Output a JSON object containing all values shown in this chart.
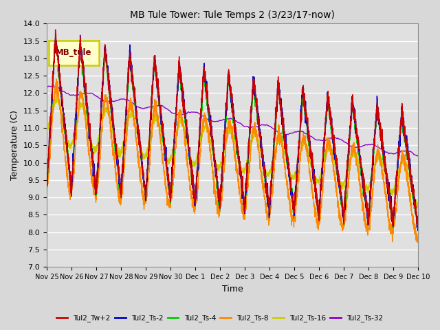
{
  "title": "MB Tule Tower: Tule Temps 2 (3/23/17-now)",
  "xlabel": "Time",
  "ylabel": "Temperature (C)",
  "ylim": [
    7.0,
    14.0
  ],
  "yticks": [
    7.0,
    7.5,
    8.0,
    8.5,
    9.0,
    9.5,
    10.0,
    10.5,
    11.0,
    11.5,
    12.0,
    12.5,
    13.0,
    13.5,
    14.0
  ],
  "line_colors": {
    "Tul2_Tw+2": "#cc0000",
    "Tul2_Ts-2": "#0000cc",
    "Tul2_Ts-4": "#00cc00",
    "Tul2_Ts-8": "#ff8800",
    "Tul2_Ts-16": "#cccc00",
    "Tul2_Ts-32": "#8800cc"
  },
  "bg_color": "#d8d8d8",
  "plot_bg_color": "#e0e0e0",
  "grid_color": "#ffffff",
  "inset_label": "MB_tule",
  "inset_label_color": "#800000",
  "inset_bg_color": "#ffffcc",
  "inset_border_color": "#cccc00",
  "xtick_labels": [
    "Nov 25",
    "Nov 26",
    "Nov 27",
    "Nov 28",
    "Nov 29",
    "Nov 30",
    "Dec 1",
    "Dec 2",
    "Dec 3",
    "Dec 4",
    "Dec 5",
    "Dec 6",
    "Dec 7",
    "Dec 8",
    "Dec 9",
    "Dec 10"
  ]
}
